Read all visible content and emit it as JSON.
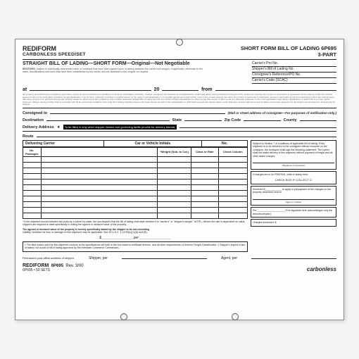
{
  "header": {
    "brand": "REDIFORM",
    "subtitle": "CARBONLESS SPEEDISET",
    "right_title": "SHORT FORM BILL OF LADING 6P695",
    "right_sub": "3-PART"
  },
  "title": "STRAIGHT BILL OF LADING—SHORT FORM—Original—Not Negotiable",
  "carrier_lines": {
    "l1": "Carrier's Pro No.",
    "l2": "Shipper's Bill of Lading No.",
    "l3": "Consignee's Reference/PO No.",
    "l4": "Carrier's Code (SCAC)"
  },
  "received_label": "RECEIVED,",
  "received_fine": "subject to individually determined rates or contracts that have been agreed upon in writing between the carrier and shipper, if applicable, otherwise to the rates, classifications and rules that have been established by the carrier and are available to the shipper on request.",
  "at_row": {
    "at": "at",
    "year_prefix": "20",
    "from": "from"
  },
  "fine_block": "the property described below in apparent good order, except as noted (contents and conditions of contents of packages unknown), marked, consigned, and destined as indicated below, which said carrier being understood throughout this contract as meaning any person or corporation in possession of the property under the contract agrees to carry to its usual place of delivery at said destination. If on its route, otherwise to deliver to another carrier on the route to said destination. It is mutually agreed as to each carrier of all or any of said property over all or any portion of said route to destination and as to each party at any time interested in all or any said property, that every service to be performed hereunder shall be subject to all the terms and conditions of the Uniform Domestic Straight Bill of Lading set forth (1) Uniform Freight Classification in effect on the date hereof, if this is a rail or a rail-water shipment, or (2) in the applicable motor carrier classification or tariff if this is a motor carrier shipment. Shipper hereby certifies that he is familiar with all the terms and conditions of the said bill of lading including those on the back thereof set forth in the classification or tariff which governs the transportation of this shipment, and the said terms and conditions are hereby agreed to by the shipper and accepted for himself and his assigns.",
  "fields": {
    "consigned": "Consigned to",
    "consigned_note": "(Mail or street address of consignee—For purposes of notification only.)",
    "destination": "Destination",
    "state": "State",
    "zip": "Zip Code",
    "county": "County",
    "delivery": "Delivery Address",
    "delivery_star": "★",
    "delivery_note": "To be filled in only when shipper desires and governing tariffs provide for delivery thereat.",
    "route": "Route"
  },
  "delivering_bar": {
    "dc": "Delivering Carrier",
    "cv": "Car or Vehicle Initials",
    "no": "No."
  },
  "table": {
    "columns": [
      "No.\nPackages",
      "",
      "*Weight\n(Sub. to Cor.)",
      "Class\nor Rate",
      "Check\nColumn"
    ],
    "row_count": 11
  },
  "side": {
    "box1": "Subject to Section 7 of conditions of applicable bill of lading, if this shipment is to be delivered to the consignee without recourse on the consignor, the consignor shall sign the following statement:\nThe carrier shall not make delivery of this shipment without payment of freight and all other lawful charges.",
    "sig1_label": "(Signature of Consignor)",
    "box2_top": "If charges are to be PREPAID, write or stamp here.",
    "box2_mid": "CHECK BOX IF COLLECT  ☐",
    "box3": "Received $____________ to apply in prepayment of the charges on the property described hereon.",
    "box3_label": "Agent or Cashier",
    "box4": "Per ____________________\n(The signature here acknowledges only the amount prepaid.)",
    "box5": "Charges Advanced:\n$"
  },
  "bottom": {
    "note1": "* If the shipment moves between two ports by a carrier by water, the law requires that the bill of lading shall state whether it is \"carrier's\" or \"shipper's weight.\"\nNOTE—Where the rate is dependent on value, shippers are required to state specifically in writing the agreed or declared value of the property.",
    "note2_a": "The agreed or declared value of the property is hereby specifically stated by the shipper to be not exceeding",
    "note2_b": "Liability Limitation for loss or damage on this shipment may be applicable. See 49 U.S.C. § 14706(c)(1)(A) and (B).",
    "per": "per",
    "note3": "† The fibre boxes used for this shipment conform to the specifications set forth in the box maker's certificate thereon, and all other requirements of Uniform Freight Classification.\n‡ Shipper's imprint in lieu of stamp; not a part of bill of lading approved by the Interstate Commerce Commission."
  },
  "sig": {
    "shipper": "Shipper, per",
    "agent": "Agent, per"
  },
  "footer": {
    "left_fine": "Permanent post-office address of shipper.",
    "brand": "REDIFORM",
    "form_no": "6P695",
    "rev": "Rev. 3/00",
    "sets": "6P695 • 50 SETS",
    "carbonless": "carbonless"
  }
}
